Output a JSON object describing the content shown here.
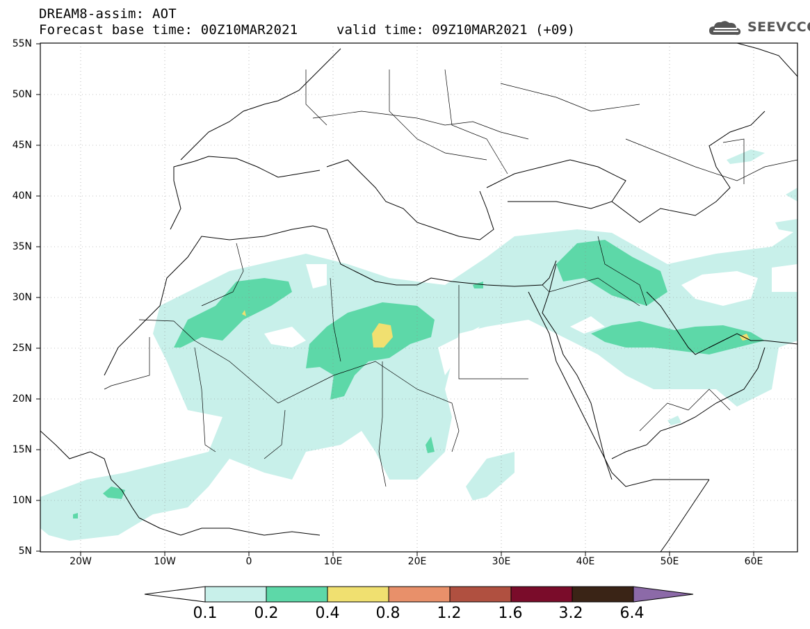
{
  "header": {
    "title": "DREAM8-assim: AOT",
    "base_time": "Forecast base time: 00Z10MAR2021",
    "valid_time": "valid time: 09Z10MAR2021 (+09)"
  },
  "logo": {
    "text": "SEEVCCC",
    "icon": "cloud-logo-icon"
  },
  "map": {
    "lat_labels": [
      "55N",
      "50N",
      "45N",
      "40N",
      "35N",
      "30N",
      "25N",
      "20N",
      "15N",
      "10N",
      "5N"
    ],
    "lon_labels": [
      "20W",
      "10W",
      "0",
      "10E",
      "20E",
      "30E",
      "40E",
      "50E",
      "60E"
    ],
    "lat_range": [
      5,
      55
    ],
    "lon_range": [
      -25,
      65
    ],
    "grid_lines": "dotted"
  },
  "colorbar": {
    "levels": [
      "0.1",
      "0.2",
      "0.4",
      "0.8",
      "1.2",
      "1.6",
      "3.2",
      "6.4"
    ],
    "colors": [
      "#ffffff",
      "#c8f0ea",
      "#5dd8a8",
      "#f0e070",
      "#e8906a",
      "#b05040",
      "#7a0c2a",
      "#3a2416",
      "#8c6aa8"
    ]
  },
  "colors": {
    "level1": "#c8f0ea",
    "level2": "#5dd8a8",
    "level3": "#f0e070",
    "border": "#000000"
  }
}
